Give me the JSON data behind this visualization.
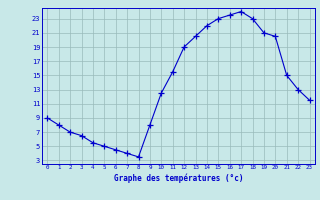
{
  "hours": [
    0,
    1,
    2,
    3,
    4,
    5,
    6,
    7,
    8,
    9,
    10,
    11,
    12,
    13,
    14,
    15,
    16,
    17,
    18,
    19,
    20,
    21,
    22,
    23
  ],
  "temperatures": [
    9,
    8,
    7,
    6.5,
    5.5,
    5,
    4.5,
    4,
    3.5,
    8,
    12.5,
    15.5,
    19,
    20.5,
    22,
    23,
    23.5,
    24,
    23,
    21,
    20.5,
    15,
    13,
    11.5
  ],
  "line_color": "#0000cc",
  "marker": "+",
  "marker_size": 4,
  "bg_color": "#c8e8e8",
  "grid_color": "#99bbbb",
  "xlabel": "Graphe des températures (°c)",
  "yticks": [
    3,
    5,
    7,
    9,
    11,
    13,
    15,
    17,
    19,
    21,
    23
  ],
  "ylim": [
    2.5,
    24.5
  ],
  "xlim": [
    -0.5,
    23.5
  ],
  "xticks": [
    0,
    1,
    2,
    3,
    4,
    5,
    6,
    7,
    8,
    9,
    10,
    11,
    12,
    13,
    14,
    15,
    16,
    17,
    18,
    19,
    20,
    21,
    22,
    23
  ]
}
